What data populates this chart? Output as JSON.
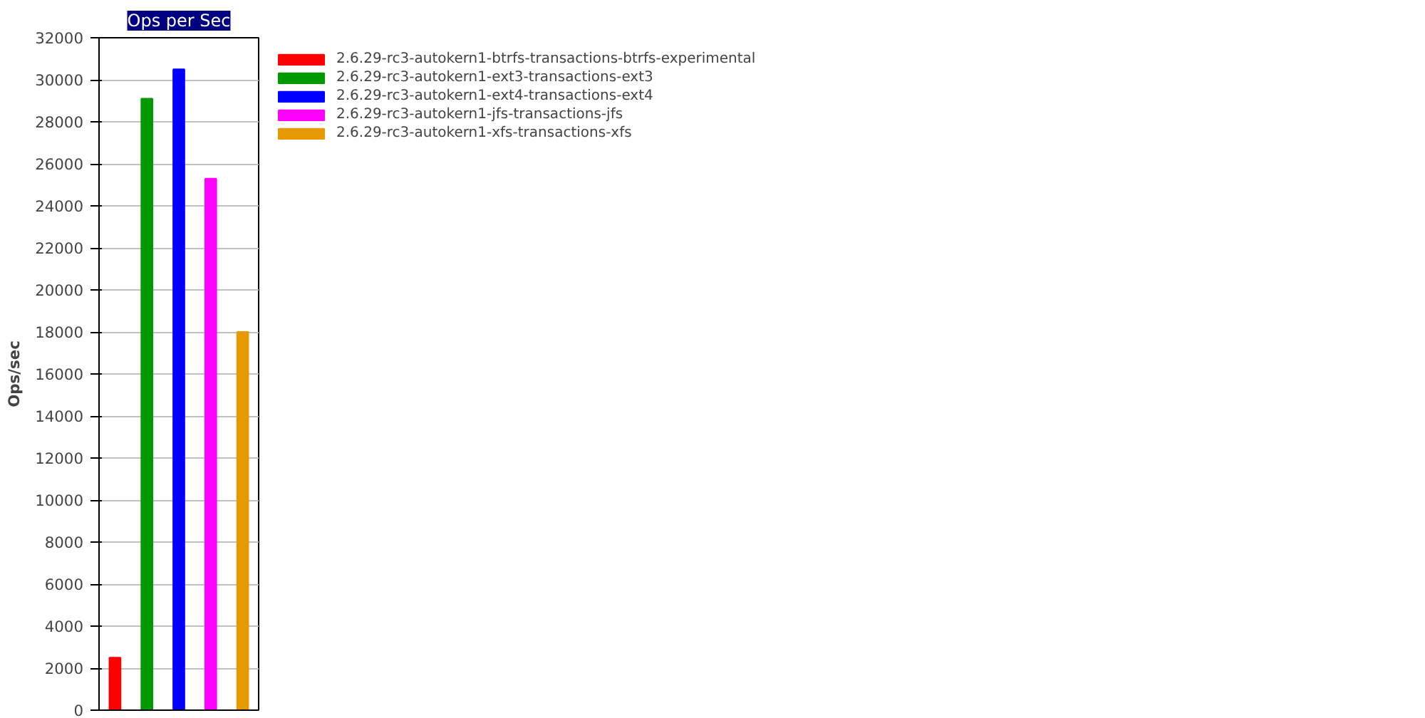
{
  "chart_data": {
    "type": "bar",
    "title": "Ops per Sec",
    "ylabel": "Ops/sec",
    "categories": [
      null,
      null,
      null,
      null,
      null
    ],
    "series": [
      {
        "name": "2.6.29-rc3-autokern1-btrfs-transactions-btrfs-experimental",
        "color": "#ff0000",
        "values": [
          2500,
          null,
          null,
          null,
          null
        ]
      },
      {
        "name": "2.6.29-rc3-autokern1-ext3-transactions-ext3",
        "color": "#009900",
        "values": [
          null,
          29100,
          null,
          null,
          null
        ]
      },
      {
        "name": "2.6.29-rc3-autokern1-ext4-transactions-ext4",
        "color": "#0000ff",
        "values": [
          null,
          null,
          30500,
          null,
          null
        ]
      },
      {
        "name": "2.6.29-rc3-autokern1-jfs-transactions-jfs",
        "color": "#ff00ff",
        "values": [
          null,
          null,
          null,
          25300,
          null
        ]
      },
      {
        "name": "2.6.29-rc3-autokern1-xfs-transactions-xfs",
        "color": "#e69900",
        "values": [
          null,
          null,
          null,
          null,
          18000
        ]
      }
    ],
    "ylim": [
      0,
      32000
    ],
    "yticks": [
      0,
      2000,
      4000,
      6000,
      8000,
      10000,
      12000,
      14000,
      16000,
      18000,
      20000,
      22000,
      24000,
      26000,
      28000,
      30000,
      32000
    ],
    "grid": "y",
    "legend": "right"
  }
}
